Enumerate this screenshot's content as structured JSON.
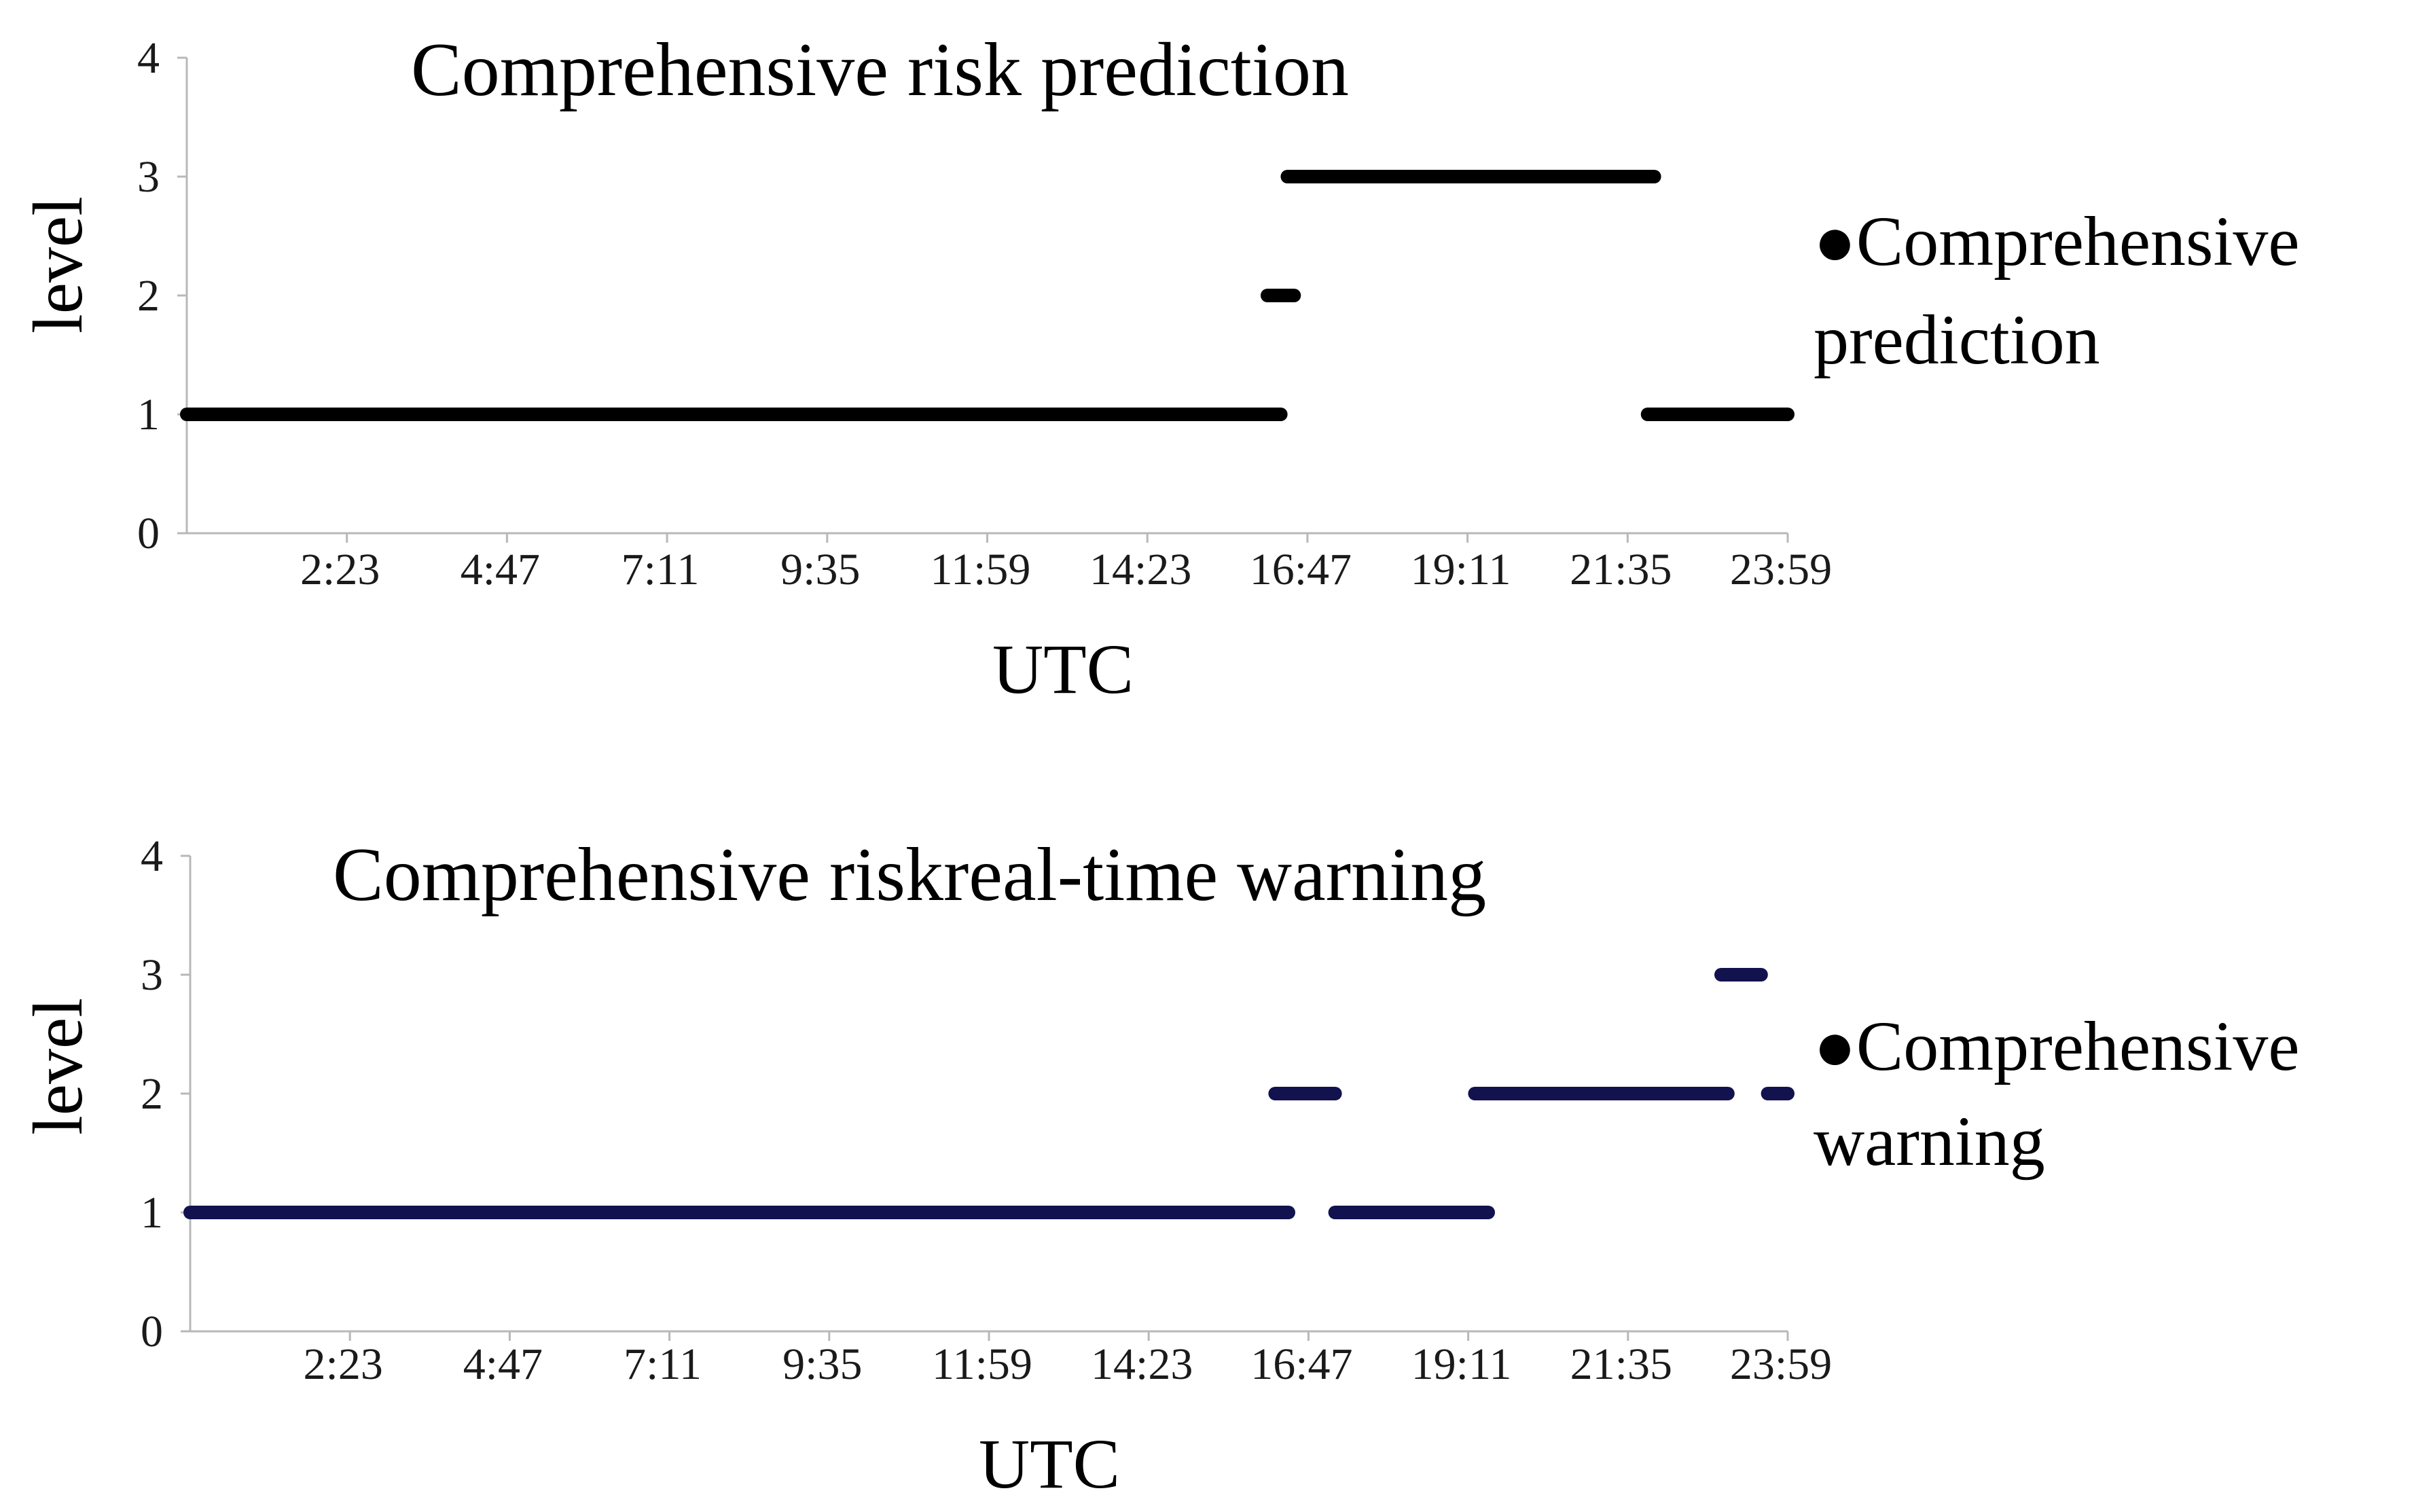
{
  "chart_data": [
    {
      "type": "line",
      "title": "Comprehensive risk prediction",
      "xlabel": "UTC",
      "ylabel": "level",
      "ylim": [
        0,
        4
      ],
      "xlim_hours": [
        0,
        24
      ],
      "x_ticks": [
        "2:23",
        "4:47",
        "7:11",
        "9:35",
        "11:59",
        "14:23",
        "16:47",
        "19:11",
        "21:35",
        "23:59"
      ],
      "y_ticks": [
        "0",
        "1",
        "2",
        "3",
        "4"
      ],
      "legend_bullet": "●",
      "legend_lines": [
        "Comprehensive",
        "prediction"
      ],
      "color": "#000000",
      "series": [
        {
          "name": "Comprehensive prediction",
          "segments": [
            {
              "start": 0.0,
              "end": 16.4,
              "level": 1
            },
            {
              "start": 16.2,
              "end": 16.6,
              "level": 2
            },
            {
              "start": 16.5,
              "end": 22.0,
              "level": 3
            },
            {
              "start": 21.9,
              "end": 24.0,
              "level": 1
            }
          ]
        }
      ]
    },
    {
      "type": "line",
      "title": "Comprehensive riskreal-time warning",
      "xlabel": "UTC",
      "ylabel": "level",
      "ylim": [
        0,
        4
      ],
      "xlim_hours": [
        0,
        24
      ],
      "x_ticks": [
        "2:23",
        "4:47",
        "7:11",
        "9:35",
        "11:59",
        "14:23",
        "16:47",
        "19:11",
        "21:35",
        "23:59"
      ],
      "y_ticks": [
        "0",
        "1",
        "2",
        "3",
        "4"
      ],
      "legend_bullet": "●",
      "legend_lines": [
        "Comprehensive",
        "warning"
      ],
      "color": "#12124f",
      "series": [
        {
          "name": "Comprehensive warning",
          "segments": [
            {
              "start": 0.0,
              "end": 16.5,
              "level": 1
            },
            {
              "start": 16.3,
              "end": 17.2,
              "level": 2
            },
            {
              "start": 17.2,
              "end": 19.5,
              "level": 1
            },
            {
              "start": 19.3,
              "end": 23.1,
              "level": 2
            },
            {
              "start": 23.0,
              "end": 23.6,
              "level": 3
            },
            {
              "start": 23.7,
              "end": 24.0,
              "level": 2
            }
          ]
        }
      ]
    }
  ]
}
